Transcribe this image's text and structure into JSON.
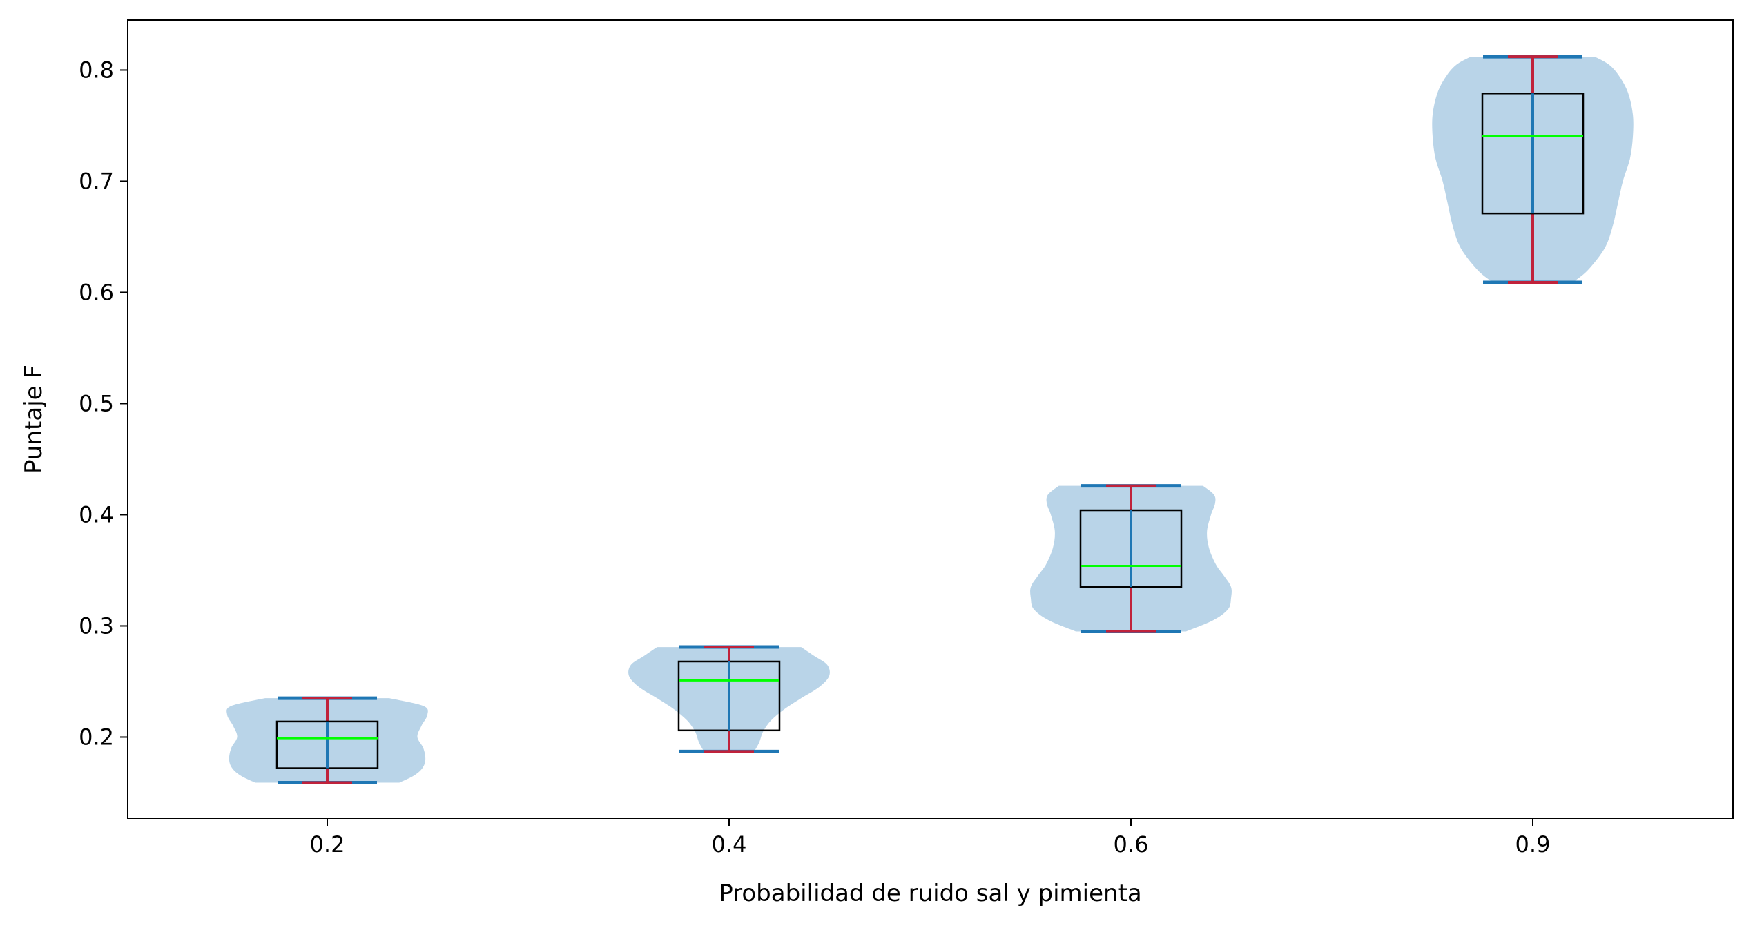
{
  "chart_data": {
    "type": "violin",
    "xlabel": "Probabilidad de ruido sal y pimienta",
    "ylabel": "Puntaje F",
    "ylim": [
      0.127,
      0.845
    ],
    "y_ticks": [
      "0.2",
      "0.3",
      "0.4",
      "0.5",
      "0.6",
      "0.7",
      "0.8"
    ],
    "categories": [
      "0.2",
      "0.4",
      "0.6",
      "0.9"
    ],
    "groups": [
      {
        "category": "0.2",
        "min": 0.159,
        "max": 0.235,
        "q1": 0.172,
        "median": 0.199,
        "q3": 0.214,
        "density": [
          [
            0.159,
            0.72
          ],
          [
            0.165,
            0.86
          ],
          [
            0.172,
            0.95
          ],
          [
            0.18,
            0.98
          ],
          [
            0.19,
            0.96
          ],
          [
            0.2,
            0.9
          ],
          [
            0.21,
            0.94
          ],
          [
            0.22,
            1.0
          ],
          [
            0.228,
            0.96
          ],
          [
            0.235,
            0.62
          ]
        ]
      },
      {
        "category": "0.4",
        "min": 0.187,
        "max": 0.281,
        "q1": 0.206,
        "median": 0.251,
        "q3": 0.268,
        "density": [
          [
            0.187,
            0.25
          ],
          [
            0.195,
            0.3
          ],
          [
            0.205,
            0.34
          ],
          [
            0.215,
            0.42
          ],
          [
            0.225,
            0.55
          ],
          [
            0.235,
            0.72
          ],
          [
            0.245,
            0.9
          ],
          [
            0.255,
            1.0
          ],
          [
            0.265,
            0.98
          ],
          [
            0.273,
            0.85
          ],
          [
            0.281,
            0.72
          ]
        ]
      },
      {
        "category": "0.6",
        "min": 0.295,
        "max": 0.426,
        "q1": 0.335,
        "median": 0.354,
        "q3": 0.404,
        "density": [
          [
            0.295,
            0.55
          ],
          [
            0.305,
            0.82
          ],
          [
            0.315,
            0.97
          ],
          [
            0.325,
            1.0
          ],
          [
            0.335,
            1.0
          ],
          [
            0.345,
            0.93
          ],
          [
            0.355,
            0.85
          ],
          [
            0.37,
            0.78
          ],
          [
            0.385,
            0.76
          ],
          [
            0.4,
            0.8
          ],
          [
            0.41,
            0.84
          ],
          [
            0.418,
            0.83
          ],
          [
            0.426,
            0.72
          ]
        ]
      },
      {
        "category": "0.9",
        "min": 0.609,
        "max": 0.812,
        "q1": 0.671,
        "median": 0.741,
        "q3": 0.779,
        "density": [
          [
            0.609,
            0.4
          ],
          [
            0.62,
            0.55
          ],
          [
            0.64,
            0.72
          ],
          [
            0.66,
            0.8
          ],
          [
            0.68,
            0.85
          ],
          [
            0.7,
            0.9
          ],
          [
            0.72,
            0.97
          ],
          [
            0.74,
            1.0
          ],
          [
            0.76,
            1.0
          ],
          [
            0.78,
            0.95
          ],
          [
            0.795,
            0.86
          ],
          [
            0.805,
            0.76
          ],
          [
            0.812,
            0.62
          ]
        ]
      }
    ],
    "colors": {
      "violin_fill": "#b9d4e8",
      "extrema_cap": "#1f77b4",
      "center_line": "#1f77b4",
      "whisker": "#c0223b",
      "box_edge": "#000000",
      "median_line": "#00ff00"
    }
  }
}
